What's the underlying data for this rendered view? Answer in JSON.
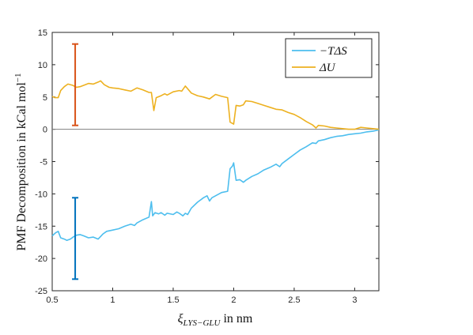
{
  "chart_data": {
    "type": "line",
    "title": "",
    "xlabel": "ξ",
    "xlabel_subscript": "LYS−GLU",
    "xlabel_unit": " in nm",
    "ylabel": "PMF Decomposition in kCal mol",
    "ylabel_superscript": "−1",
    "xlim": [
      0.5,
      3.2
    ],
    "ylim": [
      -25,
      15
    ],
    "xticks": [
      0.5,
      1,
      1.5,
      2,
      2.5,
      3
    ],
    "xtick_labels": [
      "0.5",
      "1",
      "1.5",
      "2",
      "2.5",
      "3"
    ],
    "yticks": [
      -25,
      -20,
      -15,
      -10,
      -5,
      0,
      5,
      10,
      15
    ],
    "ytick_labels": [
      "-25",
      "-20",
      "-15",
      "-10",
      "-5",
      "0",
      "5",
      "10",
      "15"
    ],
    "grid": false,
    "zero_line": true,
    "legend_position": "top-right",
    "series": [
      {
        "name": "−TΔS",
        "color": "#4DBEEE",
        "x": [
          0.5,
          0.53,
          0.55,
          0.57,
          0.6,
          0.62,
          0.65,
          0.68,
          0.7,
          0.73,
          0.76,
          0.8,
          0.84,
          0.88,
          0.9,
          0.92,
          0.95,
          1.0,
          1.05,
          1.1,
          1.15,
          1.18,
          1.2,
          1.25,
          1.3,
          1.32,
          1.33,
          1.35,
          1.38,
          1.4,
          1.43,
          1.45,
          1.5,
          1.53,
          1.55,
          1.58,
          1.6,
          1.62,
          1.65,
          1.7,
          1.75,
          1.78,
          1.8,
          1.82,
          1.85,
          1.9,
          1.95,
          1.97,
          1.99,
          2.0,
          2.02,
          2.05,
          2.08,
          2.1,
          2.15,
          2.2,
          2.25,
          2.3,
          2.35,
          2.38,
          2.4,
          2.45,
          2.5,
          2.55,
          2.6,
          2.65,
          2.68,
          2.7,
          2.75,
          2.8,
          2.85,
          2.9,
          2.95,
          3.0,
          3.05,
          3.1,
          3.15,
          3.2
        ],
        "y": [
          -16.5,
          -16.0,
          -15.8,
          -16.8,
          -17.0,
          -17.2,
          -17.0,
          -16.6,
          -16.4,
          -16.3,
          -16.5,
          -16.8,
          -16.7,
          -17.0,
          -16.6,
          -16.2,
          -15.8,
          -15.6,
          -15.4,
          -15.0,
          -14.7,
          -14.9,
          -14.5,
          -14.0,
          -13.6,
          -11.2,
          -13.4,
          -12.9,
          -13.1,
          -12.9,
          -13.3,
          -13.0,
          -13.2,
          -12.8,
          -13.0,
          -13.4,
          -13.0,
          -13.2,
          -12.2,
          -11.3,
          -10.6,
          -10.3,
          -11.1,
          -10.6,
          -10.3,
          -9.8,
          -9.6,
          -6.1,
          -5.7,
          -5.2,
          -7.9,
          -7.8,
          -8.2,
          -7.9,
          -7.3,
          -6.9,
          -6.3,
          -5.9,
          -5.4,
          -5.8,
          -5.3,
          -4.6,
          -3.9,
          -3.2,
          -2.7,
          -2.1,
          -2.2,
          -1.8,
          -1.6,
          -1.3,
          -1.1,
          -1.0,
          -0.8,
          -0.7,
          -0.6,
          -0.4,
          -0.3,
          -0.1
        ]
      },
      {
        "name": "ΔU",
        "color": "#EDB120",
        "x": [
          0.5,
          0.52,
          0.55,
          0.57,
          0.6,
          0.63,
          0.67,
          0.7,
          0.73,
          0.76,
          0.8,
          0.84,
          0.88,
          0.9,
          0.93,
          0.97,
          1.0,
          1.05,
          1.1,
          1.15,
          1.2,
          1.25,
          1.3,
          1.32,
          1.34,
          1.36,
          1.4,
          1.43,
          1.45,
          1.5,
          1.55,
          1.57,
          1.6,
          1.65,
          1.7,
          1.75,
          1.8,
          1.85,
          1.9,
          1.95,
          1.97,
          2.0,
          2.02,
          2.05,
          2.08,
          2.1,
          2.15,
          2.2,
          2.25,
          2.3,
          2.35,
          2.4,
          2.45,
          2.5,
          2.55,
          2.6,
          2.65,
          2.68,
          2.7,
          2.75,
          2.8,
          2.85,
          2.9,
          2.95,
          3.0,
          3.05,
          3.1,
          3.15,
          3.2
        ],
        "y": [
          5.1,
          4.9,
          4.9,
          6.0,
          6.6,
          7.0,
          6.8,
          6.5,
          6.6,
          6.8,
          7.1,
          7.0,
          7.3,
          7.5,
          6.9,
          6.5,
          6.4,
          6.3,
          6.1,
          5.9,
          6.4,
          6.1,
          5.7,
          5.7,
          2.9,
          4.9,
          5.2,
          5.5,
          5.3,
          5.8,
          6.0,
          5.9,
          6.7,
          5.6,
          5.2,
          5.0,
          4.7,
          5.4,
          5.1,
          4.9,
          1.1,
          0.8,
          3.7,
          3.6,
          3.8,
          4.4,
          4.3,
          4.0,
          3.7,
          3.4,
          3.1,
          3.0,
          2.6,
          2.3,
          1.8,
          1.2,
          0.7,
          0.2,
          0.6,
          0.5,
          0.3,
          0.2,
          0.1,
          0.0,
          0.0,
          0.3,
          0.2,
          0.1,
          0.0
        ]
      }
    ],
    "error_bars": [
      {
        "series": "ΔU",
        "x": 0.69,
        "low": 0.6,
        "high": 13.2,
        "color": "#D95319"
      },
      {
        "series": "−TΔS",
        "x": 0.69,
        "low": -23.2,
        "high": -10.6,
        "color": "#0072BD"
      }
    ]
  }
}
